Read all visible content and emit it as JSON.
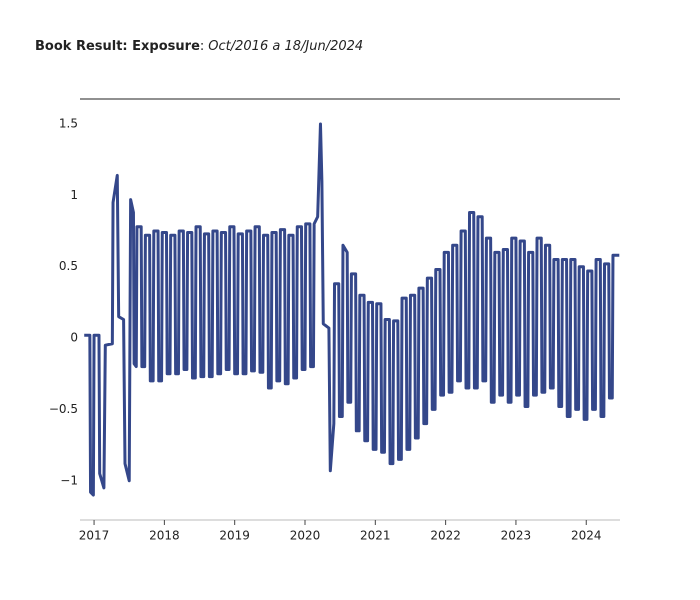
{
  "chart_data": {
    "type": "line",
    "title_parts": [
      "Book Result: Exposure",
      ":",
      "Oct/2016 a 18/Jun/2024"
    ],
    "xlim": [
      2016.8,
      2024.48
    ],
    "xticks": [
      2017,
      2018,
      2019,
      2020,
      2021,
      2022,
      2023,
      2024
    ],
    "ylim": [
      -1.275,
      1.675
    ],
    "yticks": [
      {
        "value": -1,
        "label": "−1"
      },
      {
        "value": -0.5,
        "label": "−0.5"
      },
      0,
      0.5,
      1,
      1.5
    ],
    "series": [
      {
        "color": "#34478a",
        "x": [
          2016.86,
          2016.94,
          2016.95,
          2016.99,
          2017.0,
          2017.07,
          2017.08,
          2017.14,
          2017.16,
          2017.26,
          2017.27,
          2017.33,
          2017.35,
          2017.42,
          2017.44,
          2017.5,
          2017.52,
          2017.56,
          2017.57,
          2017.6,
          2017.61,
          2017.67,
          2017.68,
          2017.72,
          2017.73,
          2017.79,
          2017.8,
          2017.84,
          2017.85,
          2017.91,
          2017.92,
          2017.96,
          2017.97,
          2018.03,
          2018.04,
          2018.08,
          2018.09,
          2018.15,
          2018.16,
          2018.2,
          2018.21,
          2018.27,
          2018.28,
          2018.32,
          2018.33,
          2018.39,
          2018.4,
          2018.44,
          2018.45,
          2018.51,
          2018.52,
          2018.56,
          2018.57,
          2018.63,
          2018.64,
          2018.68,
          2018.69,
          2018.75,
          2018.76,
          2018.8,
          2018.81,
          2018.87,
          2018.88,
          2018.92,
          2018.93,
          2018.99,
          2019.0,
          2019.04,
          2019.05,
          2019.11,
          2019.12,
          2019.16,
          2019.17,
          2019.23,
          2019.24,
          2019.28,
          2019.29,
          2019.35,
          2019.36,
          2019.4,
          2019.41,
          2019.47,
          2019.48,
          2019.52,
          2019.53,
          2019.59,
          2019.6,
          2019.64,
          2019.65,
          2019.71,
          2019.72,
          2019.76,
          2019.77,
          2019.83,
          2019.84,
          2019.88,
          2019.89,
          2019.95,
          2019.96,
          2020.0,
          2020.01,
          2020.07,
          2020.08,
          2020.12,
          2020.13,
          2020.18,
          2020.22,
          2020.24,
          2020.26,
          2020.34,
          2020.36,
          2020.41,
          2020.42,
          2020.48,
          2020.49,
          2020.53,
          2020.54,
          2020.6,
          2020.61,
          2020.65,
          2020.66,
          2020.72,
          2020.73,
          2020.77,
          2020.78,
          2020.84,
          2020.85,
          2020.89,
          2020.9,
          2020.96,
          2020.97,
          2021.01,
          2021.02,
          2021.08,
          2021.09,
          2021.13,
          2021.14,
          2021.2,
          2021.21,
          2021.25,
          2021.26,
          2021.32,
          2021.33,
          2021.37,
          2021.38,
          2021.44,
          2021.45,
          2021.49,
          2021.5,
          2021.56,
          2021.57,
          2021.61,
          2021.62,
          2021.68,
          2021.69,
          2021.73,
          2021.74,
          2021.8,
          2021.81,
          2021.85,
          2021.86,
          2021.92,
          2021.93,
          2021.97,
          2021.98,
          2022.04,
          2022.05,
          2022.09,
          2022.1,
          2022.16,
          2022.17,
          2022.21,
          2022.22,
          2022.28,
          2022.29,
          2022.33,
          2022.34,
          2022.4,
          2022.41,
          2022.45,
          2022.46,
          2022.52,
          2022.53,
          2022.57,
          2022.58,
          2022.64,
          2022.65,
          2022.69,
          2022.7,
          2022.76,
          2022.77,
          2022.81,
          2022.82,
          2022.88,
          2022.89,
          2022.93,
          2022.94,
          2023.0,
          2023.01,
          2023.05,
          2023.06,
          2023.12,
          2023.13,
          2023.17,
          2023.18,
          2023.24,
          2023.25,
          2023.29,
          2023.3,
          2023.36,
          2023.37,
          2023.41,
          2023.42,
          2023.48,
          2023.49,
          2023.53,
          2023.54,
          2023.6,
          2023.61,
          2023.65,
          2023.66,
          2023.72,
          2023.73,
          2023.77,
          2023.78,
          2023.84,
          2023.85,
          2023.89,
          2023.9,
          2023.96,
          2023.97,
          2024.01,
          2024.02,
          2024.08,
          2024.09,
          2024.13,
          2024.14,
          2024.2,
          2024.21,
          2024.25,
          2024.26,
          2024.32,
          2024.33,
          2024.37,
          2024.38,
          2024.47
        ],
        "values": [
          0.02,
          0.02,
          -1.08,
          -1.1,
          0.02,
          0.02,
          -0.95,
          -1.05,
          -0.05,
          -0.04,
          0.95,
          1.14,
          0.15,
          0.13,
          -0.88,
          -1.0,
          0.97,
          0.88,
          -0.18,
          -0.2,
          0.78,
          0.78,
          -0.2,
          -0.2,
          0.72,
          0.72,
          -0.3,
          -0.3,
          0.75,
          0.75,
          -0.3,
          -0.3,
          0.74,
          0.74,
          -0.25,
          -0.25,
          0.72,
          0.72,
          -0.25,
          -0.25,
          0.75,
          0.75,
          -0.22,
          -0.22,
          0.74,
          0.74,
          -0.28,
          -0.28,
          0.78,
          0.78,
          -0.27,
          -0.27,
          0.73,
          0.73,
          -0.27,
          -0.27,
          0.75,
          0.75,
          -0.25,
          -0.25,
          0.74,
          0.74,
          -0.22,
          -0.22,
          0.78,
          0.78,
          -0.25,
          -0.25,
          0.73,
          0.73,
          -0.25,
          -0.25,
          0.75,
          0.75,
          -0.23,
          -0.23,
          0.78,
          0.78,
          -0.24,
          -0.24,
          0.72,
          0.72,
          -0.35,
          -0.35,
          0.74,
          0.74,
          -0.3,
          -0.3,
          0.76,
          0.76,
          -0.32,
          -0.32,
          0.72,
          0.72,
          -0.28,
          -0.28,
          0.78,
          0.78,
          -0.22,
          -0.22,
          0.8,
          0.8,
          -0.2,
          -0.2,
          0.8,
          0.85,
          1.5,
          1.1,
          0.1,
          0.07,
          -0.93,
          -0.6,
          0.38,
          0.38,
          -0.55,
          -0.55,
          0.65,
          0.6,
          -0.45,
          -0.45,
          0.45,
          0.45,
          -0.65,
          -0.65,
          0.3,
          0.3,
          -0.72,
          -0.72,
          0.25,
          0.25,
          -0.78,
          -0.78,
          0.24,
          0.24,
          -0.8,
          -0.8,
          0.13,
          0.13,
          -0.88,
          -0.88,
          0.12,
          0.12,
          -0.85,
          -0.85,
          0.28,
          0.28,
          -0.78,
          -0.78,
          0.3,
          0.3,
          -0.7,
          -0.7,
          0.35,
          0.35,
          -0.6,
          -0.6,
          0.42,
          0.42,
          -0.5,
          -0.5,
          0.48,
          0.48,
          -0.4,
          -0.4,
          0.6,
          0.6,
          -0.38,
          -0.38,
          0.65,
          0.65,
          -0.3,
          -0.3,
          0.75,
          0.75,
          -0.35,
          -0.35,
          0.88,
          0.88,
          -0.35,
          -0.35,
          0.85,
          0.85,
          -0.3,
          -0.3,
          0.7,
          0.7,
          -0.45,
          -0.45,
          0.6,
          0.6,
          -0.4,
          -0.4,
          0.62,
          0.62,
          -0.45,
          -0.45,
          0.7,
          0.7,
          -0.4,
          -0.4,
          0.68,
          0.68,
          -0.48,
          -0.48,
          0.6,
          0.6,
          -0.4,
          -0.4,
          0.7,
          0.7,
          -0.38,
          -0.38,
          0.65,
          0.65,
          -0.35,
          -0.35,
          0.55,
          0.55,
          -0.48,
          -0.48,
          0.55,
          0.55,
          -0.55,
          -0.55,
          0.55,
          0.55,
          -0.5,
          -0.5,
          0.5,
          0.5,
          -0.57,
          -0.57,
          0.47,
          0.47,
          -0.5,
          -0.5,
          0.55,
          0.55,
          -0.55,
          -0.55,
          0.52,
          0.52,
          -0.42,
          -0.42,
          0.58,
          0.58
        ]
      }
    ]
  }
}
